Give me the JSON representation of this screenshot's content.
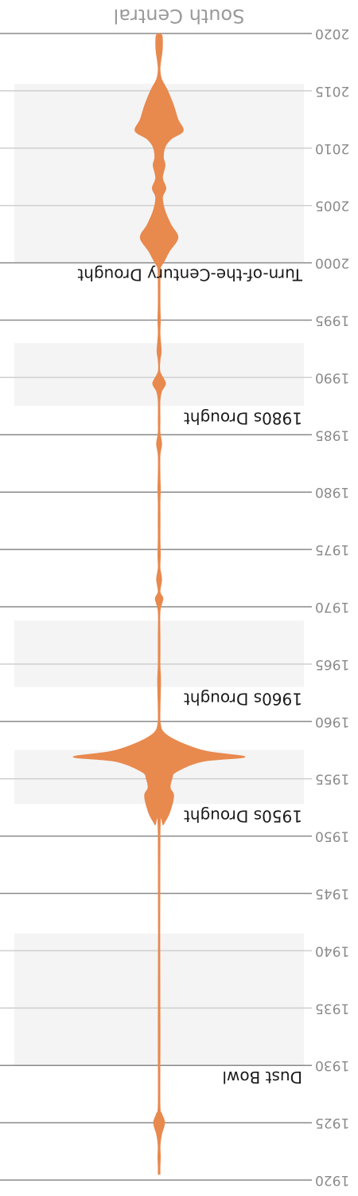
{
  "chart_data": {
    "type": "area",
    "orientation": "vertical, rotated 180 degrees",
    "title": "South Central",
    "y_axis": {
      "min": 1920,
      "max": 2020,
      "ticks": [
        1920,
        1925,
        1930,
        1935,
        1940,
        1945,
        1950,
        1955,
        1960,
        1965,
        1970,
        1975,
        1980,
        1985,
        1990,
        1995,
        2000,
        2005,
        2010,
        2015,
        2020
      ]
    },
    "drought_periods": [
      {
        "label": "Dust Bowl",
        "start": 1930,
        "end": 1941.5
      },
      {
        "label": "1950s Drought",
        "start": 1952.8,
        "end": 1957.5
      },
      {
        "label": "1960s Drought",
        "start": 1963,
        "end": 1968.8
      },
      {
        "label": "1980s Drought",
        "start": 1987.5,
        "end": 1993
      },
      {
        "label": "Turn-of-the-Century Drought",
        "start": 2000,
        "end": 2015.6
      }
    ],
    "density": {
      "color": "#E8894E",
      "unit": "relative half-width (0-1)",
      "points": [
        [
          1920.5,
          0
        ],
        [
          1921.2,
          0.01
        ],
        [
          1922,
          0.015
        ],
        [
          1923,
          0.012
        ],
        [
          1924,
          0.03
        ],
        [
          1925,
          0.065
        ],
        [
          1925.8,
          0.03
        ],
        [
          1926.5,
          0
        ],
        [
          1931.2,
          0
        ],
        [
          1932.2,
          0.01
        ],
        [
          1933.3,
          0
        ],
        [
          1950.2,
          0
        ],
        [
          1951,
          0.05
        ],
        [
          1952,
          0.12
        ],
        [
          1953.5,
          0.17
        ],
        [
          1954.2,
          0.13
        ],
        [
          1955,
          0.15
        ],
        [
          1955.6,
          0.2
        ],
        [
          1956.5,
          0.5
        ],
        [
          1956.9,
          1.0
        ],
        [
          1957.4,
          0.55
        ],
        [
          1958.2,
          0.24
        ],
        [
          1959,
          0.06
        ],
        [
          1959.8,
          0.015
        ],
        [
          1961,
          0.005
        ],
        [
          1963.5,
          0.018
        ],
        [
          1964.8,
          0.005
        ],
        [
          1966,
          0.01
        ],
        [
          1967.3,
          0.01
        ],
        [
          1969.6,
          0
        ],
        [
          1970.7,
          0.045
        ],
        [
          1971.3,
          0.01
        ],
        [
          1972.4,
          0.03
        ],
        [
          1973.4,
          0.005
        ],
        [
          1974.5,
          0.015
        ],
        [
          1976,
          0.003
        ],
        [
          1977.5,
          0.012
        ],
        [
          1979,
          0.003
        ],
        [
          1980.3,
          0.015
        ],
        [
          1981.5,
          0
        ],
        [
          1983.2,
          0.005
        ],
        [
          1984.2,
          0.03
        ],
        [
          1985.2,
          0
        ],
        [
          1986.2,
          0.003
        ],
        [
          1988,
          0.008
        ],
        [
          1988.8,
          0.03
        ],
        [
          1989.5,
          0.075
        ],
        [
          1990.5,
          0.01
        ],
        [
          1991.5,
          0.003
        ],
        [
          1992.3,
          0.025
        ],
        [
          1993.8,
          0.01
        ],
        [
          1995,
          0.015
        ],
        [
          1996.3,
          0.005
        ],
        [
          1998,
          0.01
        ],
        [
          1999.5,
          0.015
        ],
        [
          2000,
          0.05
        ],
        [
          2001,
          0.12
        ],
        [
          2002.2,
          0.22
        ],
        [
          2003.3,
          0.14
        ],
        [
          2004.5,
          0.07
        ],
        [
          2005.7,
          0.04
        ],
        [
          2006.5,
          0.08
        ],
        [
          2007.4,
          0.04
        ],
        [
          2008.5,
          0.07
        ],
        [
          2009.2,
          0.05
        ],
        [
          2010.1,
          0.07
        ],
        [
          2010.8,
          0.14
        ],
        [
          2011.5,
          0.28
        ],
        [
          2012.5,
          0.22
        ],
        [
          2013.7,
          0.17
        ],
        [
          2015,
          0.1
        ],
        [
          2016,
          0.03
        ],
        [
          2016.8,
          0.003
        ],
        [
          2017.5,
          0.018
        ],
        [
          2018.4,
          0.035
        ],
        [
          2019.1,
          0.04
        ],
        [
          2019.8,
          0.035
        ],
        [
          2020,
          0
        ]
      ]
    }
  }
}
